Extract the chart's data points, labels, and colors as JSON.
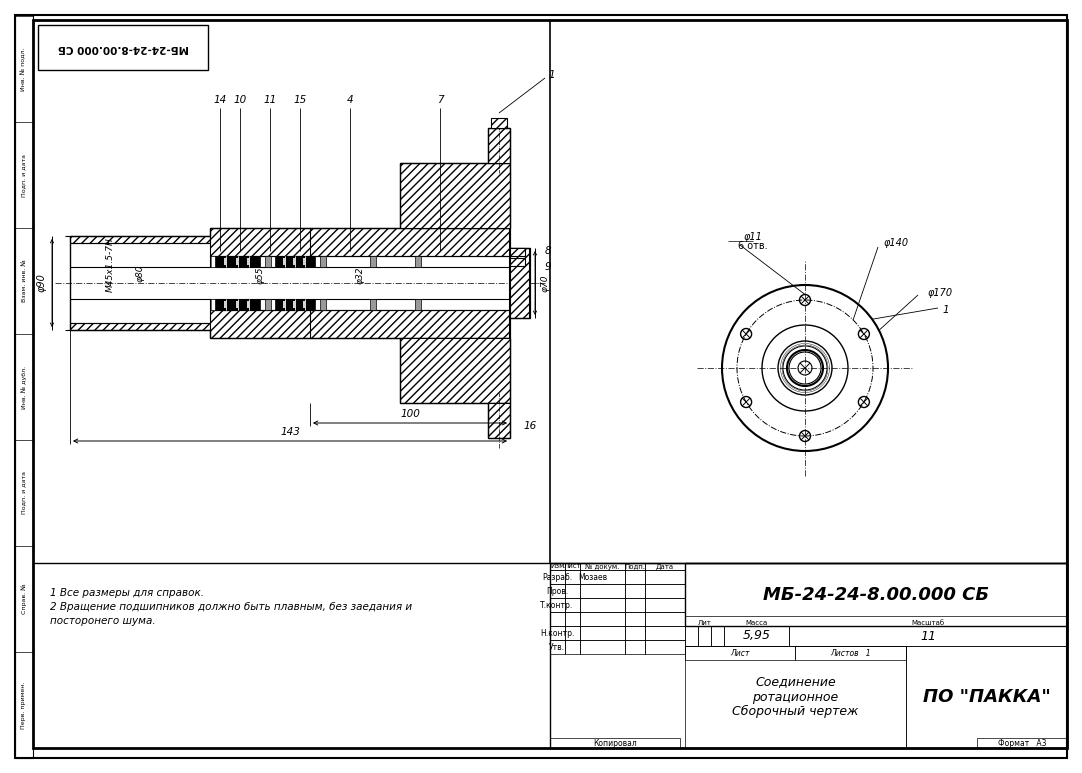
{
  "bg_color": "#ffffff",
  "lc": "#000000",
  "title_block": {
    "drawing_number": "МБ-24-24-8.00.000 СБ",
    "title_line1": "Соединение",
    "title_line2": "ротационное",
    "title_line3": "Сборочный чертеж",
    "company": "ПО \"ПАККА\"",
    "designer": "Мозаев",
    "mass": "5,95",
    "scale": "11"
  },
  "notes": [
    "1 Все размеры для справок.",
    "2 Вращение подшипников должно быть плавным, без заедания и",
    "посторонего шума."
  ],
  "stamp_labels": [
    "Перв. примен.",
    "Справ. №",
    "Подп. и дата",
    "Инв. № дубл.",
    "Взам. инв. №",
    "Подп. и дата",
    "Инв. № подл."
  ],
  "top_stamp": "МБ-24-24-8.00.000 СБ",
  "part_labels_left": [
    "14",
    "10",
    "11",
    "15",
    "4",
    "7"
  ],
  "dim_labels": [
    "φ90",
    "M45x1.5-7H",
    "φ80",
    "φ55",
    "φ32",
    "φ70"
  ],
  "dim_100": "100",
  "dim_143": "143",
  "right_view_dims": [
    "φ11",
    "6 отв.",
    "φ140",
    "φ170"
  ]
}
